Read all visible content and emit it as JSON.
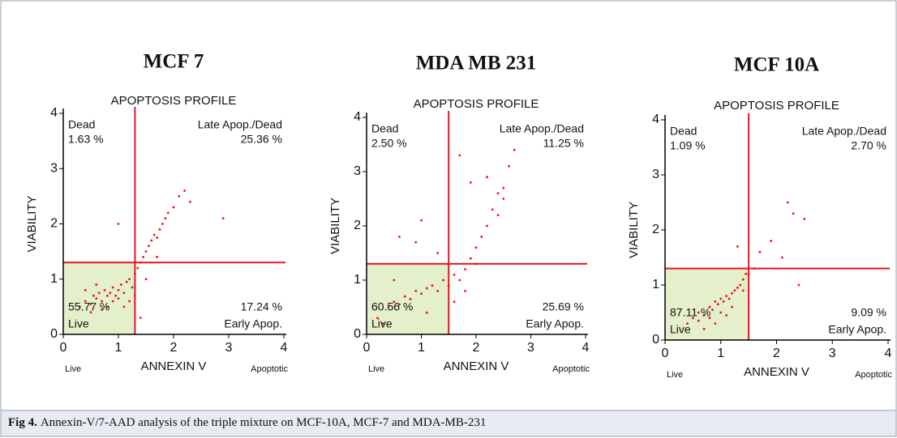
{
  "chart_data": [
    {
      "type": "scatter",
      "title": "MCF 7",
      "subtitle": "APOPTOSIS PROFILE",
      "xlabel": "ANNEXIN V",
      "ylabel": "VIABILITY",
      "x_end_labels": [
        "Live",
        "Apoptotic"
      ],
      "color": "#e8141c",
      "gate_color": "#e8141c",
      "live_fill": "#e4efcb",
      "xlim": [
        0,
        4
      ],
      "ylim": [
        0,
        4
      ],
      "xticks": [
        0,
        1,
        2,
        3,
        4
      ],
      "yticks": [
        0,
        1,
        2,
        3,
        4
      ],
      "gates": [
        1.3,
        1.3
      ],
      "quadrants": {
        "names": [
          "Dead",
          "Late Apop./Dead",
          "Live",
          "Early Apop."
        ],
        "values": [
          1.63,
          25.36,
          55.77,
          17.24
        ],
        "value_labels": [
          "1.63 %",
          "25.36 %",
          "55.77 %",
          "17.24 %"
        ]
      },
      "x": [
        0.3,
        0.4,
        0.5,
        0.55,
        0.6,
        0.65,
        0.7,
        0.75,
        0.8,
        0.85,
        0.9,
        0.95,
        1.0,
        1.05,
        1.1,
        1.15,
        1.2,
        1.25,
        1.3,
        1.35,
        1.4,
        1.45,
        1.5,
        1.55,
        1.6,
        1.65,
        1.7,
        1.75,
        1.8,
        1.85,
        1.9,
        2.0,
        2.1,
        2.2,
        0.5,
        0.7,
        0.9,
        1.1,
        1.3,
        1.5,
        1.7,
        0.4,
        0.6,
        0.8,
        1.0,
        1.2,
        2.3,
        1.0,
        2.9,
        1.4
      ],
      "y": [
        0.5,
        0.6,
        0.55,
        0.7,
        0.65,
        0.75,
        0.6,
        0.8,
        0.7,
        0.75,
        0.85,
        0.7,
        0.8,
        0.9,
        0.75,
        0.95,
        1.0,
        0.85,
        1.1,
        1.2,
        1.3,
        1.4,
        1.5,
        1.6,
        1.7,
        1.8,
        1.75,
        1.9,
        2.0,
        2.1,
        2.2,
        2.3,
        2.5,
        2.6,
        0.4,
        0.45,
        0.6,
        0.5,
        0.7,
        1.0,
        1.4,
        0.8,
        0.9,
        0.5,
        0.65,
        0.6,
        2.4,
        2.0,
        2.1,
        0.3
      ]
    },
    {
      "type": "scatter",
      "title": "MDA MB 231",
      "subtitle": "APOPTOSIS PROFILE",
      "xlabel": "ANNEXIN V",
      "ylabel": "VIABILITY",
      "x_end_labels": [
        "Live",
        "Apoptotic"
      ],
      "color": "#e8141c",
      "gate_color": "#e8141c",
      "live_fill": "#e4efcb",
      "xlim": [
        0,
        4
      ],
      "ylim": [
        0,
        4
      ],
      "xticks": [
        0,
        1,
        2,
        3,
        4
      ],
      "yticks": [
        0,
        1,
        2,
        3,
        4
      ],
      "gates": [
        1.5,
        1.3
      ],
      "quadrants": {
        "names": [
          "Dead",
          "Late Apop./Dead",
          "Live",
          "Early Apop."
        ],
        "values": [
          2.5,
          11.25,
          60.56,
          25.69
        ],
        "value_labels": [
          "2.50 %",
          "11.25 %",
          "60.56 %",
          "25.69 %"
        ]
      },
      "x": [
        0.2,
        0.4,
        0.5,
        0.6,
        0.7,
        0.8,
        0.9,
        1.0,
        1.1,
        1.2,
        1.3,
        1.4,
        1.5,
        1.6,
        1.7,
        1.8,
        1.9,
        2.0,
        2.1,
        2.2,
        2.3,
        2.4,
        2.5,
        2.6,
        1.7,
        1.9,
        2.2,
        2.5,
        0.6,
        0.9,
        1.0,
        0.5,
        1.3,
        1.6,
        1.8,
        2.0,
        2.7,
        0.3,
        1.1,
        2.4
      ],
      "y": [
        0.3,
        0.5,
        0.6,
        0.55,
        0.7,
        0.65,
        0.8,
        0.75,
        0.85,
        0.9,
        0.8,
        1.0,
        0.9,
        1.1,
        1.0,
        1.2,
        1.4,
        1.6,
        1.8,
        2.0,
        2.3,
        2.6,
        2.7,
        3.1,
        3.3,
        2.8,
        2.9,
        2.5,
        1.8,
        1.7,
        2.1,
        1.0,
        1.5,
        0.6,
        0.8,
        1.3,
        3.4,
        0.2,
        0.4,
        2.2
      ]
    },
    {
      "type": "scatter",
      "title": "MCF 10A",
      "subtitle": "APOPTOSIS PROFILE",
      "xlabel": "ANNEXIN V",
      "ylabel": "VIABILITY",
      "x_end_labels": [
        "Live",
        "Apoptotic"
      ],
      "color": "#e8141c",
      "gate_color": "#e8141c",
      "live_fill": "#e4efcb",
      "xlim": [
        0,
        4
      ],
      "ylim": [
        0,
        4
      ],
      "xticks": [
        0,
        1,
        2,
        3,
        4
      ],
      "yticks": [
        0,
        1,
        2,
        3,
        4
      ],
      "gates": [
        1.5,
        1.3
      ],
      "quadrants": {
        "names": [
          "Dead",
          "Late Apop./Dead",
          "Live",
          "Early Apop."
        ],
        "values": [
          1.09,
          2.7,
          87.11,
          9.09
        ],
        "value_labels": [
          "1.09 %",
          "2.70 %",
          "87.11 %",
          "9.09 %"
        ]
      },
      "x": [
        0.5,
        0.6,
        0.7,
        0.8,
        0.85,
        0.9,
        0.95,
        1.0,
        1.05,
        1.1,
        1.15,
        1.2,
        1.25,
        1.3,
        1.35,
        1.4,
        1.45,
        0.4,
        0.6,
        0.8,
        1.0,
        1.2,
        1.4,
        1.6,
        1.7,
        1.9,
        2.1,
        2.3,
        2.5,
        1.3,
        1.5,
        0.7,
        0.9,
        1.1,
        2.2,
        2.4
      ],
      "y": [
        0.4,
        0.5,
        0.45,
        0.6,
        0.55,
        0.7,
        0.65,
        0.75,
        0.7,
        0.8,
        0.75,
        0.85,
        0.9,
        0.95,
        1.0,
        1.1,
        1.2,
        0.3,
        0.35,
        0.4,
        0.5,
        0.6,
        0.9,
        1.3,
        1.6,
        1.8,
        1.5,
        2.3,
        2.2,
        1.7,
        1.2,
        0.2,
        0.3,
        0.45,
        2.5,
        1.0
      ]
    }
  ],
  "caption": {
    "label": "Fig 4.",
    "text": "Annexin-V/7-AAD analysis of the triple mixture on MCF-10A, MCF-7 and MDA-MB-231"
  }
}
